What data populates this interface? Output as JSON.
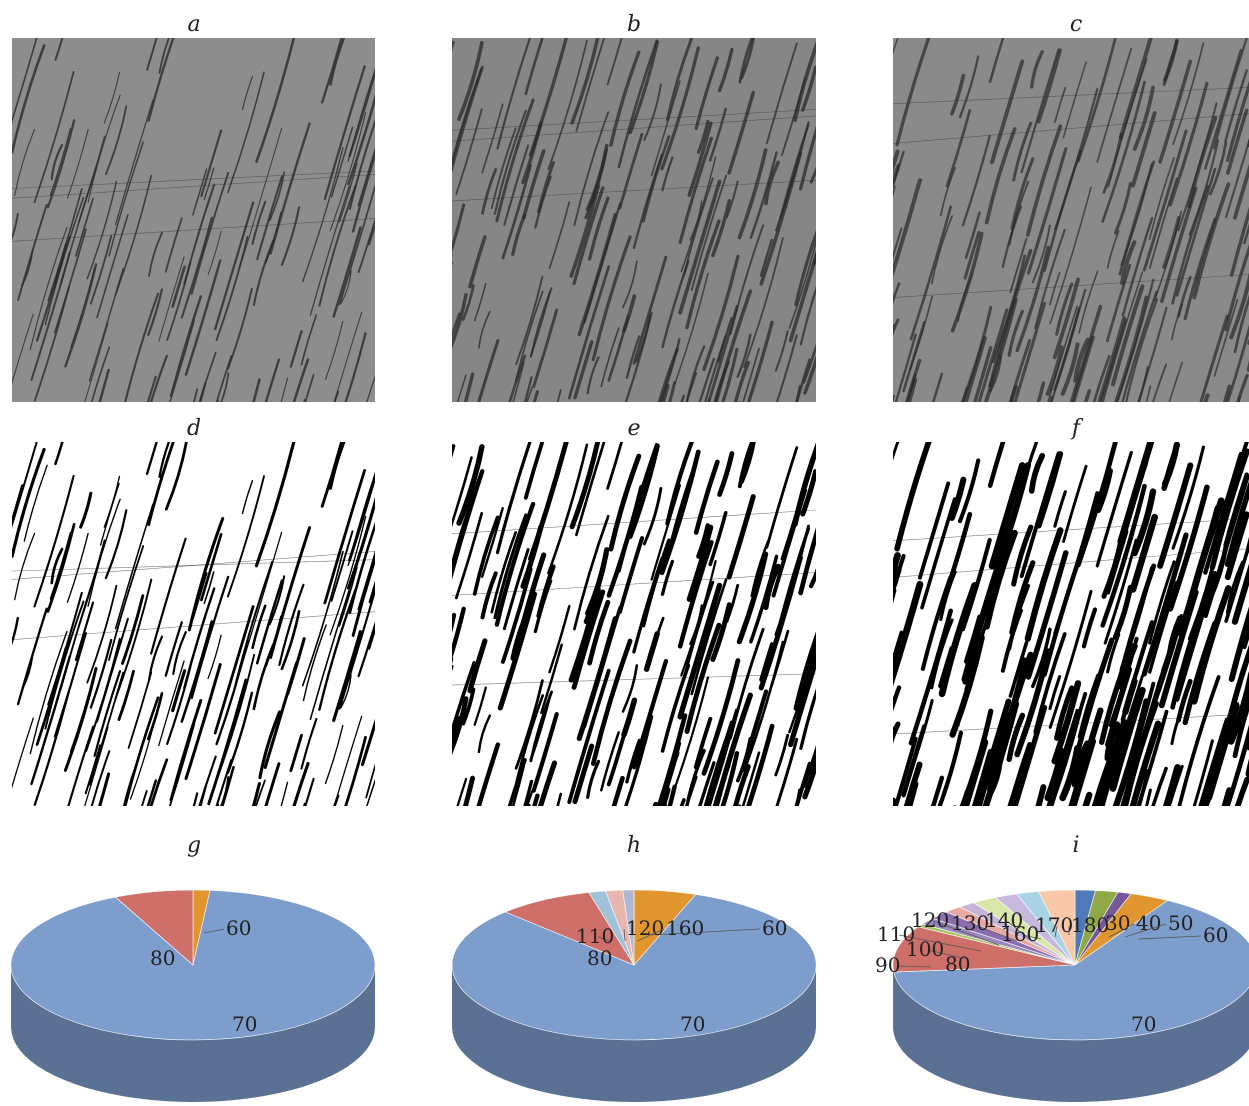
{
  "panels": {
    "a": "a",
    "b": "b",
    "c": "c",
    "d": "d",
    "e": "e",
    "f": "f",
    "g": "g",
    "h": "h",
    "i": "i"
  },
  "colors": {
    "gray_bg_a": "#8d8d8d",
    "gray_bg_b": "#868686",
    "gray_bg_c": "#8a8a8a",
    "crack_dark": "#2a2a2a",
    "binary_black": "#000000",
    "binary_white": "#ffffff"
  },
  "chart_data": [
    {
      "type": "pie",
      "panel": "g",
      "categories": [
        "60",
        "70",
        "80"
      ],
      "values": [
        1.5,
        91.5,
        7.0
      ],
      "slice_colors": [
        "#e0952e",
        "#7d9dcc",
        "#cf6f6a"
      ]
    },
    {
      "type": "pie",
      "panel": "h",
      "categories": [
        "60",
        "70",
        "80",
        "110",
        "120",
        "160"
      ],
      "values": [
        5.5,
        82.0,
        8.5,
        1.5,
        1.5,
        1.0
      ],
      "slice_colors": [
        "#e0952e",
        "#7d9dcc",
        "#cf6f6a",
        "#9fc2d9",
        "#e8b6b0",
        "#aeb7d3"
      ]
    },
    {
      "type": "pie",
      "panel": "i",
      "categories": [
        "30",
        "40",
        "50",
        "60",
        "70",
        "80",
        "90",
        "100",
        "110",
        "120",
        "130",
        "140",
        "160",
        "170",
        "180"
      ],
      "values": [
        1.8,
        2.0,
        1.2,
        3.5,
        65.0,
        10.0,
        0.7,
        1.5,
        1.8,
        1.6,
        1.5,
        2.2,
        2.0,
        2.0,
        3.2
      ],
      "slice_colors": [
        "#4f7ab8",
        "#90a848",
        "#74589a",
        "#e0952e",
        "#7d9dcc",
        "#cf6f6a",
        "#a8c36a",
        "#9a87bb",
        "#8c6eb0",
        "#e8a8a2",
        "#c5b4d8",
        "#d8e6a8",
        "#c7b8de",
        "#a9d2e5",
        "#f8c8a8"
      ]
    }
  ]
}
